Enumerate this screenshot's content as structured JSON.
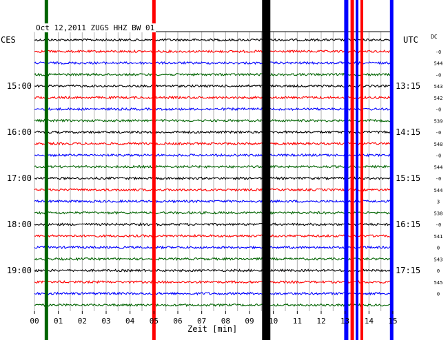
{
  "chart_data": {
    "type": "line",
    "title": "Oct 12,2011   ZUGS HHZ BW 01",
    "xlabel": "Zeit [min]",
    "left_axis_title": "CES",
    "right_axis_title": "UTC",
    "dc_label": "DC",
    "xlim": [
      0,
      15
    ],
    "x_ticks": [
      "00",
      "01",
      "02",
      "03",
      "04",
      "05",
      "06",
      "07",
      "08",
      "09",
      "10",
      "11",
      "12",
      "13",
      "14",
      "15"
    ],
    "trace_colors": [
      "#000000",
      "#ff0000",
      "#0000ff",
      "#006400"
    ],
    "trace_count": 24,
    "left_time_labels": [
      {
        "trace": 4,
        "label": "15:00"
      },
      {
        "trace": 8,
        "label": "16:00"
      },
      {
        "trace": 12,
        "label": "17:00"
      },
      {
        "trace": 16,
        "label": "18:00"
      },
      {
        "trace": 20,
        "label": "19:00"
      }
    ],
    "right_time_labels": [
      {
        "trace": 4,
        "label": "13:15"
      },
      {
        "trace": 8,
        "label": "14:15"
      },
      {
        "trace": 12,
        "label": "15:15"
      },
      {
        "trace": 16,
        "label": "16:15"
      },
      {
        "trace": 20,
        "label": "17:15"
      }
    ],
    "dc_offsets": [
      "-0",
      "544",
      "-0",
      "543",
      "542",
      "-0",
      "539",
      "-0",
      "548",
      "-0",
      "544",
      "-0",
      "544",
      "3",
      "538",
      "-0",
      "541",
      "0",
      "543",
      "0",
      "545",
      "0"
    ],
    "events": [
      {
        "x_min": 0.5,
        "color": "#006400",
        "width": 5
      },
      {
        "x_min": 5.0,
        "color": "#ff0000",
        "width": 5
      },
      {
        "x_min": 9.7,
        "color": "#000000",
        "width": 12
      },
      {
        "x_min": 13.05,
        "color": "#0000ff",
        "width": 6
      },
      {
        "x_min": 13.3,
        "color": "#ff0000",
        "width": 5
      },
      {
        "x_min": 13.5,
        "color": "#0000ff",
        "width": 4
      },
      {
        "x_min": 13.7,
        "color": "#ff0000",
        "width": 4
      },
      {
        "x_min": 14.95,
        "color": "#0000ff",
        "width": 5
      }
    ]
  }
}
